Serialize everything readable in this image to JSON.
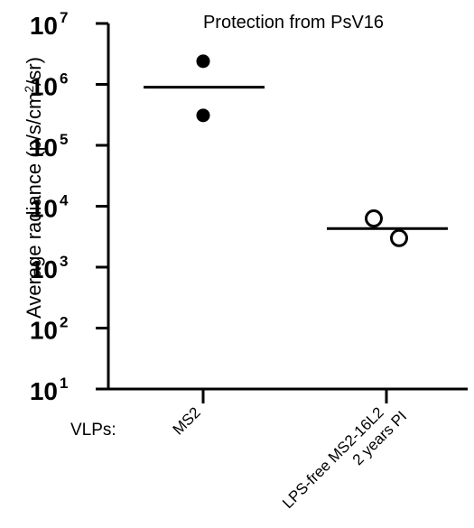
{
  "chart_data": {
    "type": "scatter",
    "title": "Protection from PsV16",
    "ylabel_main": "Average radiance (p/s/cm",
    "ylabel_sup": "2",
    "ylabel_end": "/sr)",
    "xlabel_prefix": "VLPs:",
    "yscale": "log",
    "ylim": [
      10,
      10000000
    ],
    "yticks": [
      {
        "base": "10",
        "exp": "1",
        "value": 10
      },
      {
        "base": "10",
        "exp": "2",
        "value": 100
      },
      {
        "base": "10",
        "exp": "3",
        "value": 1000
      },
      {
        "base": "10",
        "exp": "4",
        "value": 10000
      },
      {
        "base": "10",
        "exp": "5",
        "value": 100000
      },
      {
        "base": "10",
        "exp": "6",
        "value": 1000000
      },
      {
        "base": "10",
        "exp": "7",
        "value": 10000000
      }
    ],
    "categories": [
      {
        "lines": [
          "MS2"
        ]
      },
      {
        "lines": [
          "LPS-free MS2-16L2",
          "2 years PI"
        ]
      }
    ],
    "groups": [
      {
        "category_index": 0,
        "marker": "filled",
        "values": [
          2400000,
          310000
        ],
        "mean": 900000
      },
      {
        "category_index": 1,
        "marker": "open",
        "values": [
          6300,
          3000
        ],
        "mean": 4300
      }
    ],
    "grid": false,
    "legend": "none",
    "colors": {
      "ink": "#000000",
      "background": "#ffffff"
    }
  }
}
